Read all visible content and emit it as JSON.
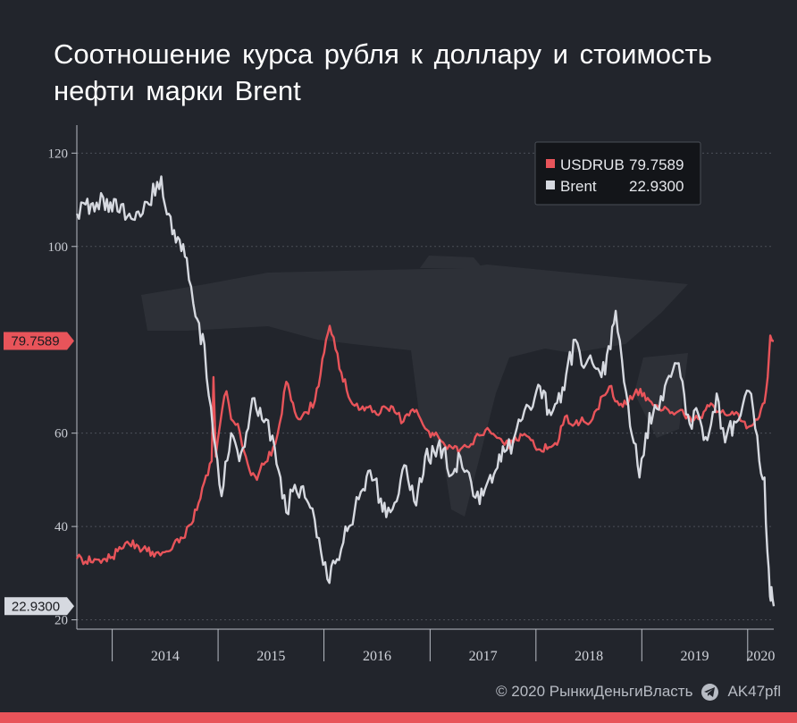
{
  "title": "Соотношение курса рубля к доллару и стоимость нефти марки Brent",
  "footer": {
    "copyright": "© 2020 РынкиДеньгиВласть",
    "telegram": "AK47pfl"
  },
  "colors": {
    "background": "#22252c",
    "usdrub": "#e8545a",
    "brent": "#d6d9e0",
    "accent_bar": "#e8545a"
  },
  "icons": {
    "telegram": "telegram-icon",
    "watermark": "ak47-rifle-watermark"
  },
  "chart_data": {
    "type": "line",
    "title": "Соотношение курса рубля к доллару и стоимость нефти марки Brent",
    "xlabel": "",
    "ylabel": "",
    "ylim": [
      18,
      126
    ],
    "y_ticks": [
      20,
      40,
      60,
      100,
      120
    ],
    "x_ticks": [
      "2014",
      "2015",
      "2016",
      "2017",
      "2018",
      "2019",
      "2020"
    ],
    "x_range": [
      "2013-09-01",
      "2020-03-31"
    ],
    "grid": true,
    "legend": {
      "position": "top-right",
      "entries": [
        {
          "name": "USDRUB",
          "value": "79.7589"
        },
        {
          "name": "Brent",
          "value": "22.9300"
        }
      ]
    },
    "last_value_labels": [
      {
        "series": "USDRUB",
        "text": "79.7589",
        "value": 79.7589
      },
      {
        "series": "Brent",
        "text": "22.9300",
        "value": 22.93
      }
    ],
    "series": [
      {
        "name": "USDRUB",
        "points": [
          [
            "2013-09-01",
            33.1
          ],
          [
            "2013-10-01",
            32.5
          ],
          [
            "2013-11-01",
            33.0
          ],
          [
            "2013-12-01",
            33.0
          ],
          [
            "2014-01-01",
            33.5
          ],
          [
            "2014-02-01",
            35.2
          ],
          [
            "2014-03-01",
            36.2
          ],
          [
            "2014-04-01",
            35.8
          ],
          [
            "2014-05-01",
            34.7
          ],
          [
            "2014-06-01",
            34.4
          ],
          [
            "2014-07-01",
            34.5
          ],
          [
            "2014-08-01",
            36.2
          ],
          [
            "2014-09-01",
            37.5
          ],
          [
            "2014-10-01",
            40.5
          ],
          [
            "2014-11-01",
            46.0
          ],
          [
            "2014-12-10",
            54.0
          ],
          [
            "2014-12-16",
            72.0
          ],
          [
            "2014-12-24",
            55.0
          ],
          [
            "2015-01-15",
            65.0
          ],
          [
            "2015-01-30",
            69.0
          ],
          [
            "2015-02-15",
            63.0
          ],
          [
            "2015-03-10",
            62.0
          ],
          [
            "2015-04-01",
            56.0
          ],
          [
            "2015-04-25",
            51.0
          ],
          [
            "2015-05-15",
            50.0
          ],
          [
            "2015-06-01",
            53.5
          ],
          [
            "2015-06-20",
            54.0
          ],
          [
            "2015-07-10",
            57.0
          ],
          [
            "2015-08-01",
            62.0
          ],
          [
            "2015-08-24",
            71.0
          ],
          [
            "2015-09-10",
            67.0
          ],
          [
            "2015-10-05",
            63.0
          ],
          [
            "2015-11-01",
            64.5
          ],
          [
            "2015-12-01",
            67.0
          ],
          [
            "2016-01-21",
            83.0
          ],
          [
            "2016-02-10",
            78.0
          ],
          [
            "2016-03-01",
            73.0
          ],
          [
            "2016-04-01",
            67.0
          ],
          [
            "2016-05-01",
            65.0
          ],
          [
            "2016-06-01",
            65.5
          ],
          [
            "2016-07-01",
            64.0
          ],
          [
            "2016-08-01",
            65.5
          ],
          [
            "2016-09-01",
            64.5
          ],
          [
            "2016-10-01",
            62.5
          ],
          [
            "2016-11-15",
            65.0
          ],
          [
            "2016-12-15",
            61.0
          ],
          [
            "2017-01-15",
            59.5
          ],
          [
            "2017-02-15",
            58.0
          ],
          [
            "2017-03-15",
            57.0
          ],
          [
            "2017-04-15",
            56.5
          ],
          [
            "2017-05-15",
            57.0
          ],
          [
            "2017-06-20",
            59.5
          ],
          [
            "2017-07-25",
            60.5
          ],
          [
            "2017-08-20",
            59.0
          ],
          [
            "2017-09-15",
            57.5
          ],
          [
            "2017-10-15",
            58.0
          ],
          [
            "2017-11-15",
            59.5
          ],
          [
            "2017-12-15",
            58.5
          ],
          [
            "2018-01-15",
            56.5
          ],
          [
            "2018-02-15",
            57.0
          ],
          [
            "2018-03-15",
            57.5
          ],
          [
            "2018-04-11",
            63.5
          ],
          [
            "2018-05-15",
            62.0
          ],
          [
            "2018-06-15",
            62.5
          ],
          [
            "2018-07-15",
            63.0
          ],
          [
            "2018-08-20",
            68.0
          ],
          [
            "2018-09-11",
            70.0
          ],
          [
            "2018-10-15",
            66.0
          ],
          [
            "2018-11-15",
            66.5
          ],
          [
            "2018-12-27",
            69.5
          ],
          [
            "2019-01-15",
            67.0
          ],
          [
            "2019-02-15",
            66.0
          ],
          [
            "2019-03-15",
            65.0
          ],
          [
            "2019-04-15",
            64.5
          ],
          [
            "2019-05-15",
            65.0
          ],
          [
            "2019-06-15",
            63.5
          ],
          [
            "2019-07-15",
            63.0
          ],
          [
            "2019-08-15",
            66.0
          ],
          [
            "2019-09-15",
            64.5
          ],
          [
            "2019-10-15",
            64.0
          ],
          [
            "2019-11-15",
            64.0
          ],
          [
            "2019-12-15",
            62.5
          ],
          [
            "2020-01-10",
            61.5
          ],
          [
            "2020-02-10",
            63.5
          ],
          [
            "2020-02-28",
            66.5
          ],
          [
            "2020-03-10",
            72.0
          ],
          [
            "2020-03-19",
            80.9
          ],
          [
            "2020-03-31",
            79.7589
          ]
        ]
      },
      {
        "name": "Brent",
        "points": [
          [
            "2013-09-01",
            107.0
          ],
          [
            "2013-10-01",
            109.0
          ],
          [
            "2013-11-01",
            107.5
          ],
          [
            "2013-12-01",
            110.5
          ],
          [
            "2014-01-01",
            107.5
          ],
          [
            "2014-02-01",
            109.0
          ],
          [
            "2014-03-01",
            107.0
          ],
          [
            "2014-04-01",
            107.5
          ],
          [
            "2014-05-01",
            109.5
          ],
          [
            "2014-06-19",
            115.0
          ],
          [
            "2014-07-15",
            107.0
          ],
          [
            "2014-08-15",
            102.0
          ],
          [
            "2014-09-15",
            97.5
          ],
          [
            "2014-10-15",
            85.0
          ],
          [
            "2014-11-15",
            79.0
          ],
          [
            "2014-12-15",
            60.0
          ],
          [
            "2015-01-13",
            46.5
          ],
          [
            "2015-02-15",
            60.0
          ],
          [
            "2015-03-15",
            54.0
          ],
          [
            "2015-04-15",
            61.0
          ],
          [
            "2015-05-06",
            67.5
          ],
          [
            "2015-06-15",
            63.0
          ],
          [
            "2015-07-15",
            57.0
          ],
          [
            "2015-08-24",
            43.0
          ],
          [
            "2015-09-15",
            47.5
          ],
          [
            "2015-10-15",
            48.5
          ],
          [
            "2015-11-15",
            44.0
          ],
          [
            "2015-12-15",
            37.5
          ],
          [
            "2016-01-20",
            27.9
          ],
          [
            "2016-02-15",
            33.0
          ],
          [
            "2016-03-15",
            40.0
          ],
          [
            "2016-04-15",
            43.0
          ],
          [
            "2016-05-15",
            48.0
          ],
          [
            "2016-06-08",
            52.0
          ],
          [
            "2016-07-15",
            46.0
          ],
          [
            "2016-08-03",
            42.0
          ],
          [
            "2016-09-15",
            47.0
          ],
          [
            "2016-10-10",
            53.0
          ],
          [
            "2016-11-14",
            44.5
          ],
          [
            "2016-12-15",
            55.0
          ],
          [
            "2017-01-15",
            56.0
          ],
          [
            "2017-02-15",
            56.5
          ],
          [
            "2017-03-15",
            51.0
          ],
          [
            "2017-04-15",
            55.0
          ],
          [
            "2017-05-15",
            51.5
          ],
          [
            "2017-06-21",
            44.8
          ],
          [
            "2017-07-15",
            49.0
          ],
          [
            "2017-08-15",
            52.0
          ],
          [
            "2017-09-15",
            56.0
          ],
          [
            "2017-10-15",
            58.5
          ],
          [
            "2017-11-15",
            63.0
          ],
          [
            "2017-12-15",
            65.0
          ],
          [
            "2018-01-15",
            70.0
          ],
          [
            "2018-02-15",
            65.0
          ],
          [
            "2018-03-15",
            66.5
          ],
          [
            "2018-04-15",
            72.5
          ],
          [
            "2018-05-17",
            80.0
          ],
          [
            "2018-06-15",
            74.0
          ],
          [
            "2018-07-15",
            75.0
          ],
          [
            "2018-08-15",
            72.0
          ],
          [
            "2018-09-15",
            78.0
          ],
          [
            "2018-10-03",
            86.2
          ],
          [
            "2018-11-15",
            66.0
          ],
          [
            "2018-12-24",
            50.5
          ],
          [
            "2019-01-15",
            60.0
          ],
          [
            "2019-02-15",
            66.0
          ],
          [
            "2019-03-15",
            67.0
          ],
          [
            "2019-04-25",
            75.0
          ],
          [
            "2019-05-15",
            72.0
          ],
          [
            "2019-06-15",
            62.0
          ],
          [
            "2019-07-15",
            64.0
          ],
          [
            "2019-08-15",
            58.5
          ],
          [
            "2019-09-16",
            68.5
          ],
          [
            "2019-10-15",
            58.0
          ],
          [
            "2019-11-15",
            62.5
          ],
          [
            "2019-12-15",
            66.0
          ],
          [
            "2020-01-06",
            69.0
          ],
          [
            "2020-01-20",
            65.0
          ],
          [
            "2020-02-10",
            54.0
          ],
          [
            "2020-02-28",
            50.5
          ],
          [
            "2020-03-09",
            34.5
          ],
          [
            "2020-03-18",
            25.0
          ],
          [
            "2020-03-23",
            27.0
          ],
          [
            "2020-03-31",
            22.93
          ]
        ]
      }
    ]
  }
}
